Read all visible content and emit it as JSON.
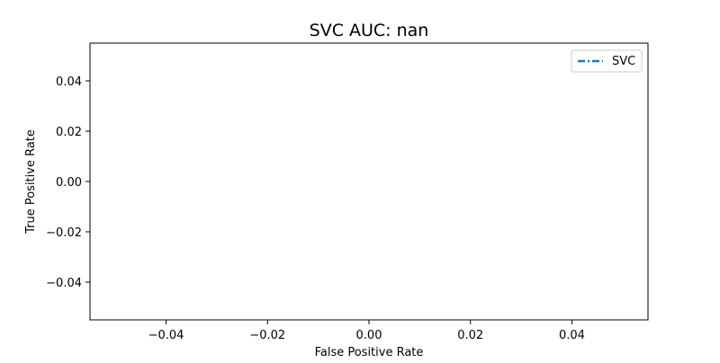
{
  "chart_data": {
    "type": "line",
    "title": "SVC AUC: nan",
    "xlabel": "False Positive Rate",
    "ylabel": "True Positive Rate",
    "xlim": [
      -0.055,
      0.055
    ],
    "ylim": [
      -0.055,
      0.055
    ],
    "xticks": [
      -0.04,
      -0.02,
      0.0,
      0.02,
      0.04
    ],
    "yticks": [
      -0.04,
      -0.02,
      0.0,
      0.02,
      0.04
    ],
    "xtick_labels": [
      "−0.04",
      "−0.02",
      "0.00",
      "0.02",
      "0.04"
    ],
    "ytick_labels": [
      "−0.04",
      "−0.02",
      "0.00",
      "0.02",
      "0.04"
    ],
    "grid": false,
    "legend_position": "upper right",
    "series": [
      {
        "name": "SVC",
        "x": [],
        "y": [],
        "color": "#1f77b4",
        "linestyle": "dashdot"
      }
    ]
  }
}
